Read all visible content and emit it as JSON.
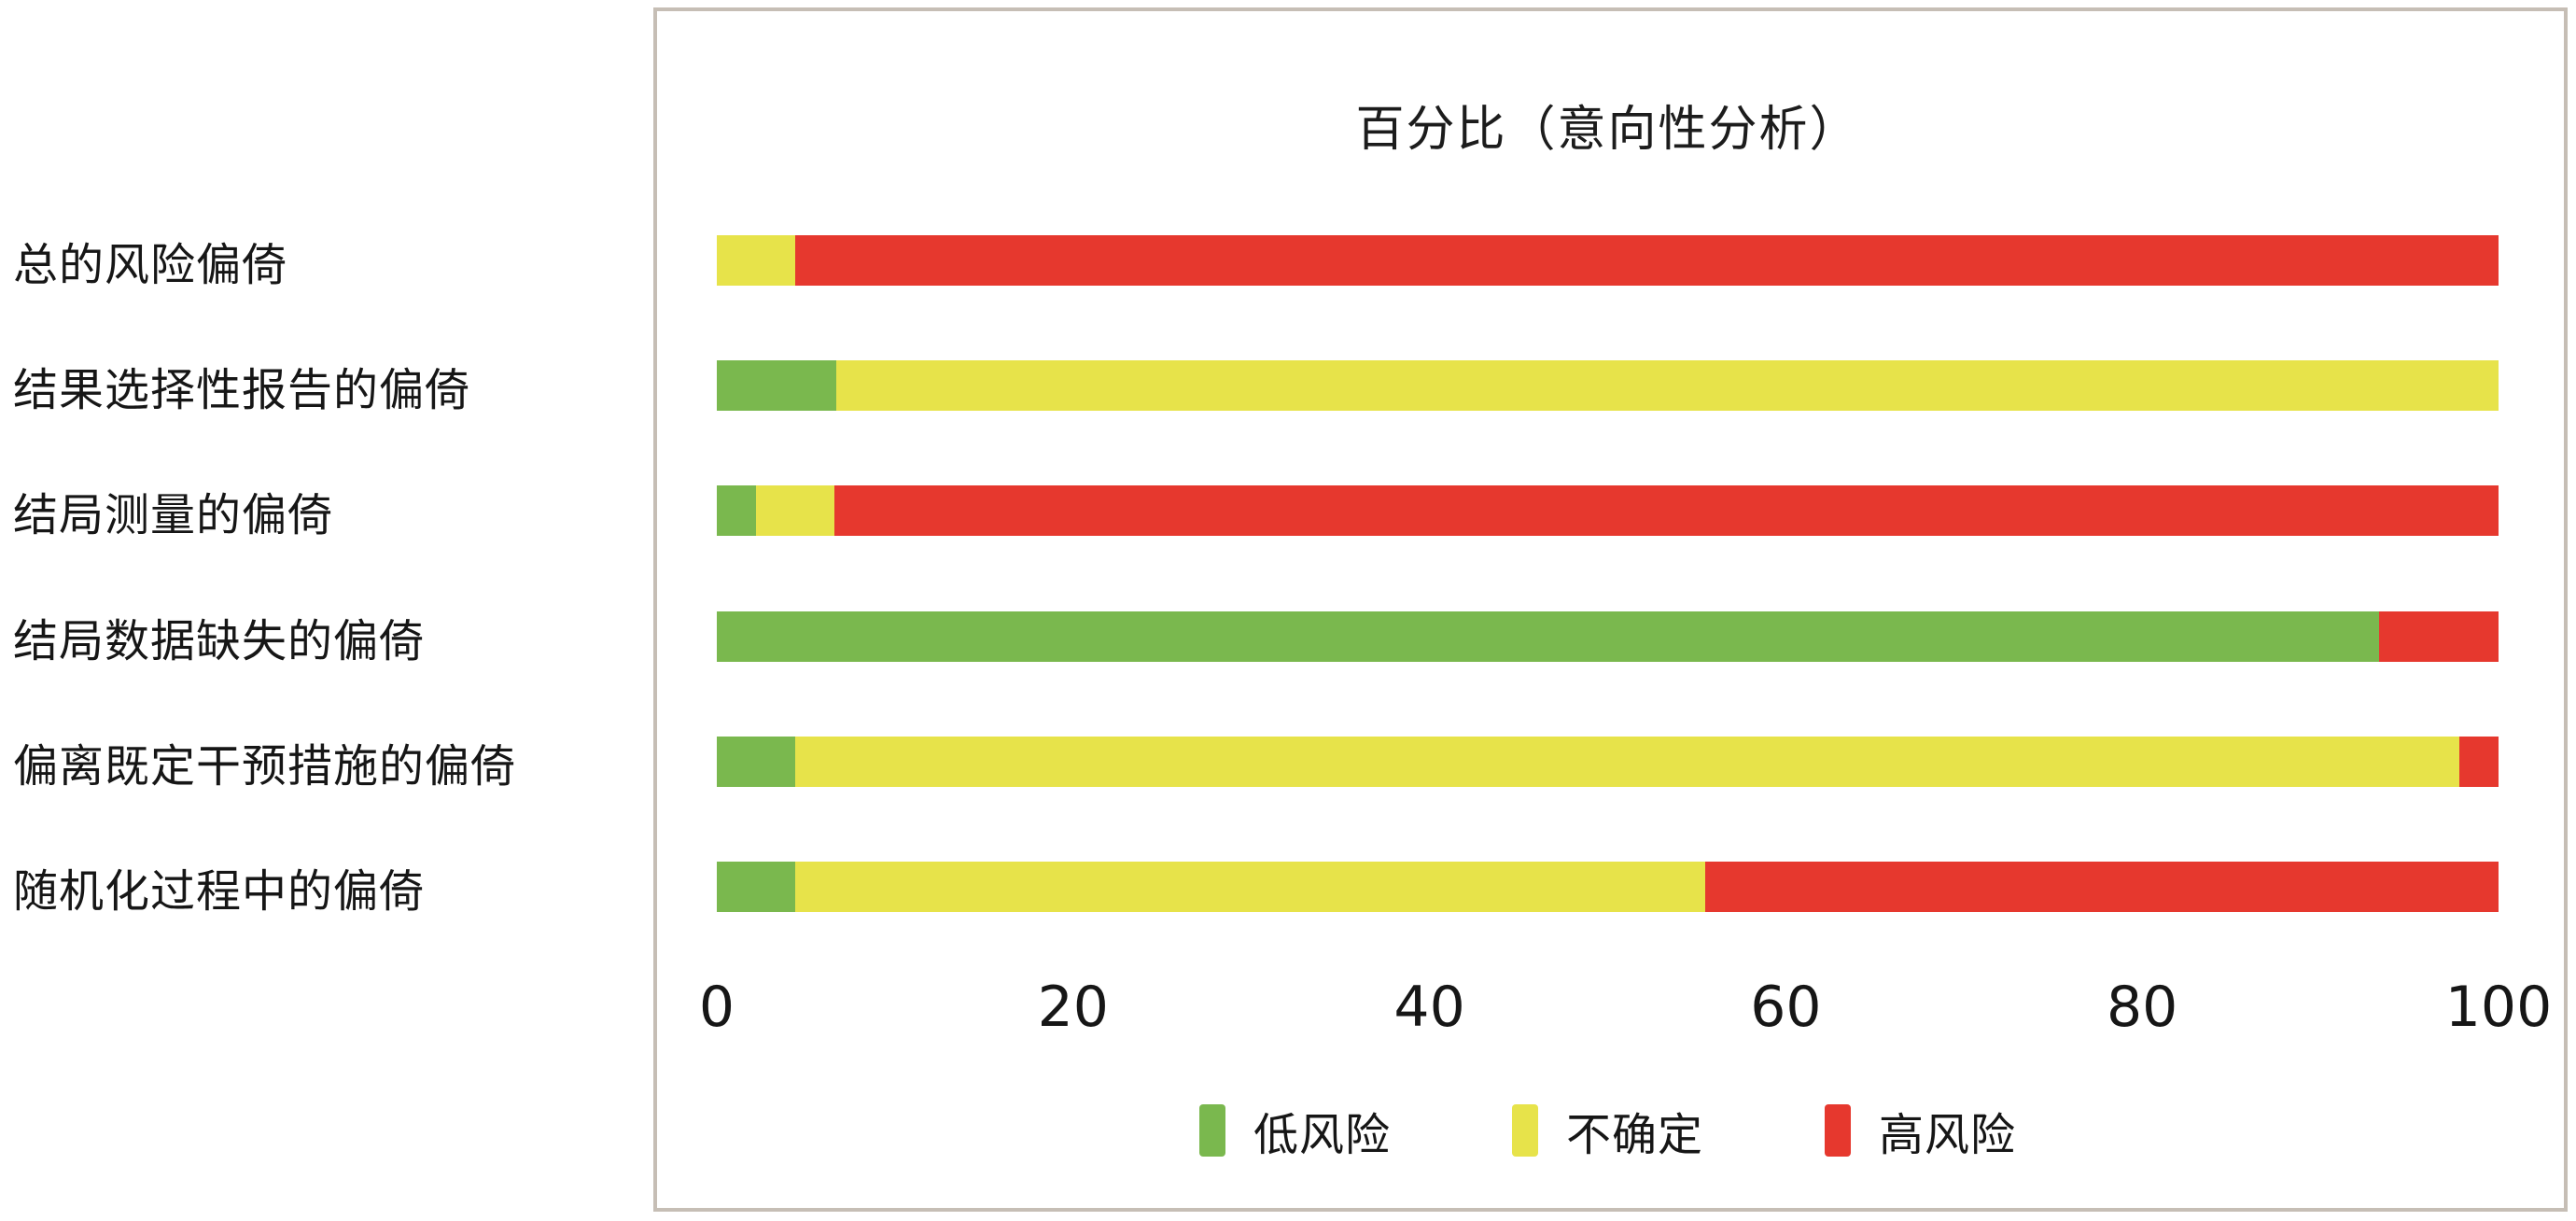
{
  "figure": {
    "background": "#ffffff",
    "frame_color": "#c6beb5"
  },
  "chart_data": {
    "type": "bar",
    "orientation": "horizontal",
    "stacked": true,
    "title": "百分比（意向性分析）",
    "xlabel": "",
    "ylabel": "",
    "xlim": [
      0,
      100
    ],
    "x_ticks": [
      "0",
      "20",
      "40",
      "60",
      "80",
      "100"
    ],
    "grid": false,
    "legend_position": "bottom",
    "categories": [
      "总的风险偏倚",
      "结果选择性报告的偏倚",
      "结局测量的偏倚",
      "结局数据缺失的偏倚",
      "偏离既定干预措施的偏倚",
      "随机化过程中的偏倚"
    ],
    "series": [
      {
        "key": "low-risk",
        "name": "低风险",
        "color": "#7ab84e",
        "values": [
          0,
          6.7,
          2.2,
          93.3,
          4.4,
          4.4
        ]
      },
      {
        "key": "unclear",
        "name": "不确定",
        "color": "#e7e34a",
        "values": [
          4.4,
          93.3,
          4.4,
          0,
          93.4,
          51.1
        ]
      },
      {
        "key": "high-risk",
        "name": "高风险",
        "color": "#e6382e",
        "values": [
          95.6,
          0,
          93.4,
          6.7,
          2.2,
          44.5
        ]
      }
    ]
  }
}
